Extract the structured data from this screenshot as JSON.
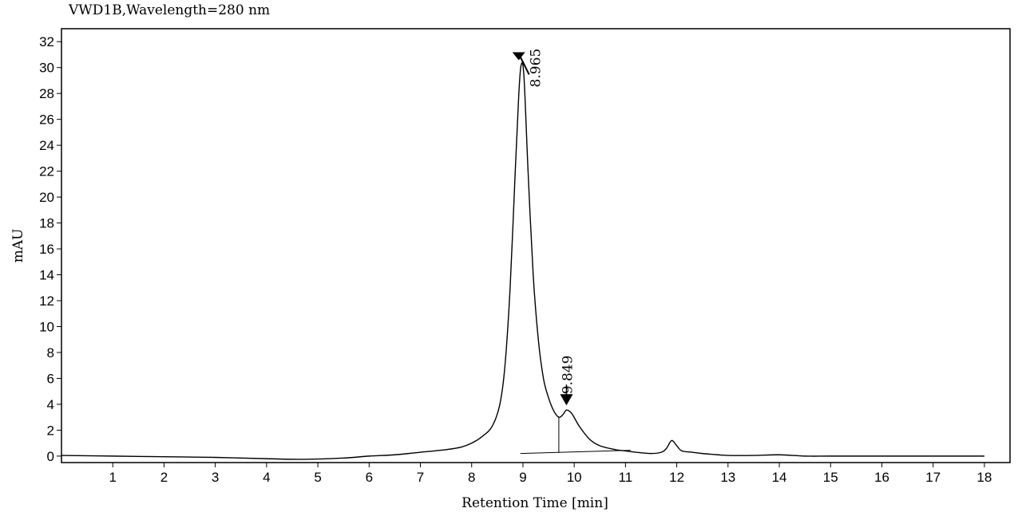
{
  "chart_data": {
    "type": "line",
    "title": "VWD1B,Wavelength=280 nm",
    "xlabel": "Retention Time [min]",
    "ylabel": "mAU",
    "xlim": [
      0,
      18.5
    ],
    "ylim": [
      -0.5,
      33
    ],
    "x_ticks": [
      1,
      2,
      3,
      4,
      5,
      6,
      7,
      8,
      9,
      10,
      11,
      12,
      13,
      14,
      15,
      16,
      17,
      18
    ],
    "y_ticks": [
      0,
      2,
      4,
      6,
      8,
      10,
      12,
      14,
      16,
      18,
      20,
      22,
      24,
      26,
      28,
      30,
      32
    ],
    "grid": false,
    "series": [
      {
        "x": [
          0,
          1,
          2,
          3,
          4,
          4.7,
          5.5,
          6,
          6.5,
          7,
          7.5,
          7.8,
          8,
          8.2,
          8.4,
          8.55,
          8.65,
          8.75,
          8.85,
          8.92,
          8.965,
          9.02,
          9.1,
          9.2,
          9.3,
          9.4,
          9.5,
          9.6,
          9.7,
          9.78,
          9.849,
          9.95,
          10.1,
          10.3,
          10.5,
          10.8,
          11,
          11.2,
          11.5,
          11.7,
          11.8,
          11.9,
          12.0,
          12.1,
          12.3,
          12.5,
          12.8,
          13,
          13.5,
          14,
          14.5,
          15,
          16,
          17,
          18
        ],
        "y": [
          0.05,
          0,
          -0.05,
          -0.1,
          -0.2,
          -0.25,
          -0.15,
          0,
          0.1,
          0.3,
          0.5,
          0.7,
          1.0,
          1.5,
          2.3,
          4,
          7,
          13,
          22,
          28,
          30.2,
          29.3,
          22,
          14,
          9,
          6,
          4.5,
          3.5,
          3.0,
          3.2,
          3.55,
          3.3,
          2.3,
          1.3,
          0.8,
          0.5,
          0.4,
          0.3,
          0.2,
          0.3,
          0.6,
          1.2,
          0.8,
          0.4,
          0.3,
          0.2,
          0.1,
          0.05,
          0.05,
          0.1,
          0,
          0,
          0,
          0,
          0
        ]
      }
    ],
    "baselines": [
      {
        "x": [
          8.95,
          11.1
        ],
        "y": [
          0.2,
          0.45
        ]
      },
      {
        "x": [
          9.7,
          9.7
        ],
        "y": [
          0.25,
          3.0
        ]
      }
    ],
    "peaks": [
      {
        "label": "8.965",
        "x": 8.965,
        "y": 30.2
      },
      {
        "label": "9.849",
        "x": 9.849,
        "y": 3.55
      }
    ]
  }
}
